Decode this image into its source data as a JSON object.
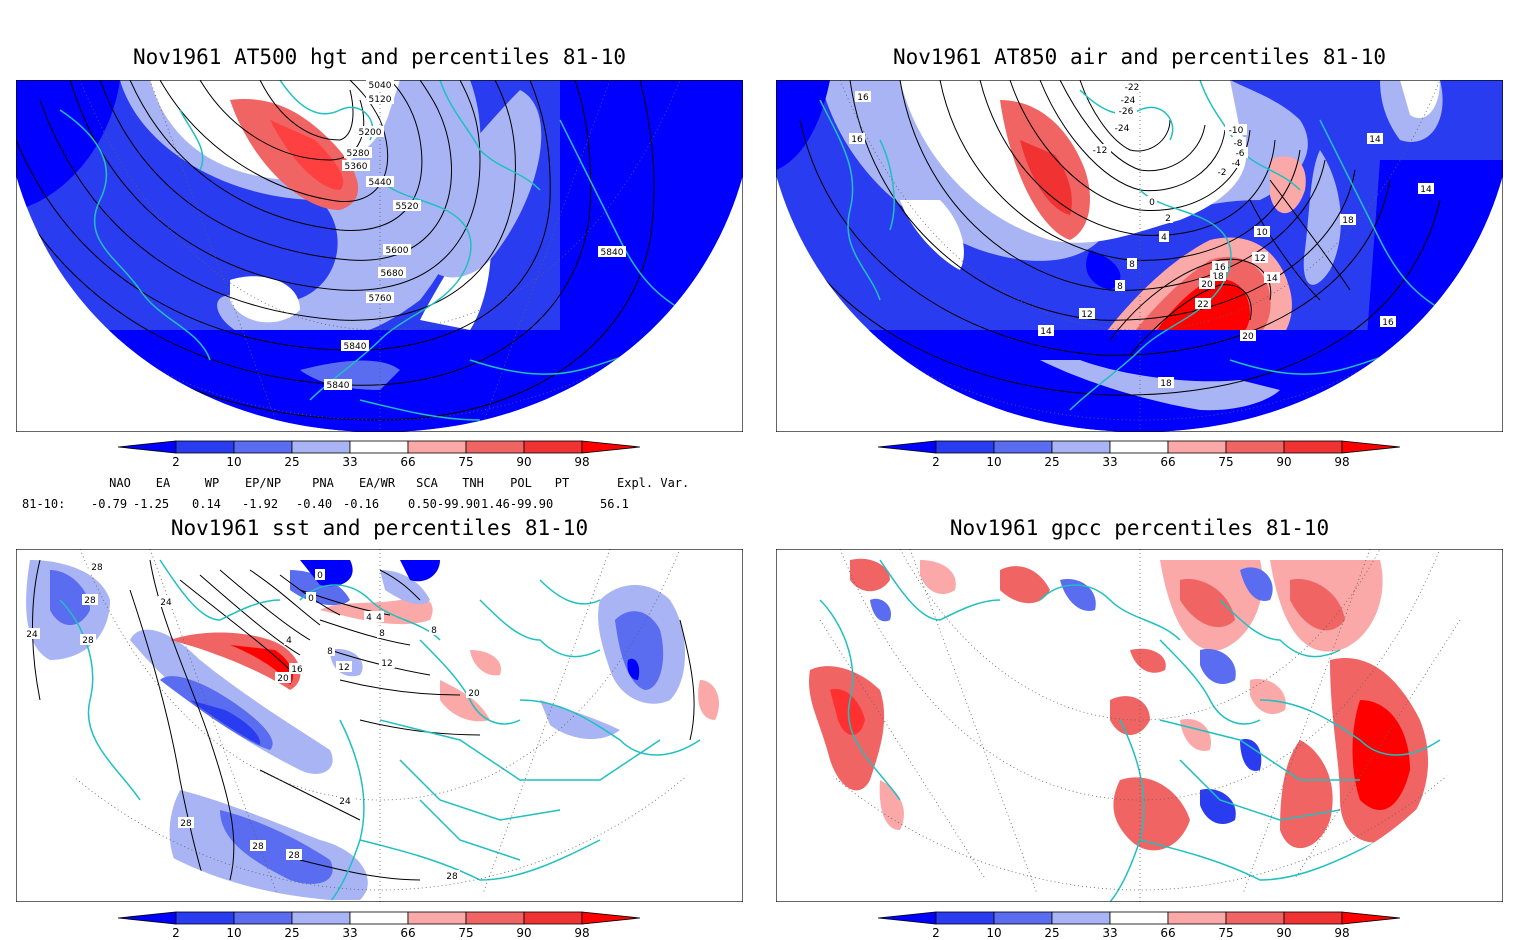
{
  "panels": [
    {
      "id": "hgt",
      "title": "Nov1961 AT500 hgt and percentiles 81-10",
      "contour_labels": [
        "5040",
        "5120",
        "5200",
        "5280",
        "5360",
        "5440",
        "5520",
        "5600",
        "5680",
        "5760",
        "5840",
        "5840",
        "5840"
      ]
    },
    {
      "id": "air",
      "title": "Nov1961 AT850 air and percentiles 81-10",
      "contour_labels": [
        "-22",
        "-24",
        "-26",
        "-24",
        "-12",
        "-10",
        "-8",
        "-6",
        "-4",
        "-2",
        "0",
        "2",
        "4",
        "8",
        "8",
        "10",
        "12",
        "12",
        "14",
        "14",
        "14",
        "16",
        "16",
        "16",
        "18",
        "18",
        "18",
        "20",
        "20",
        "22",
        "16",
        "14"
      ]
    },
    {
      "id": "sst",
      "title": "Nov1961 sst and percentiles 81-10",
      "contour_labels": [
        "28",
        "28",
        "28",
        "24",
        "24",
        "0",
        "0",
        "4",
        "4",
        "4",
        "8",
        "8",
        "8",
        "12",
        "12",
        "16",
        "20",
        "20",
        "28",
        "28",
        "28",
        "28",
        "24"
      ]
    },
    {
      "id": "gpcc",
      "title": "Nov1961 gpcc percentiles 81-10",
      "contour_labels": []
    }
  ],
  "colorbar": {
    "labels": [
      "2",
      "10",
      "25",
      "33",
      "66",
      "75",
      "90",
      "98"
    ],
    "colors": [
      "#0000ff",
      "#2a3cf0",
      "#5a6cf0",
      "#a8b4f4",
      "#ffffff",
      "#faa8a8",
      "#f06464",
      "#f03232",
      "#ff0000"
    ]
  },
  "indices": {
    "headers": [
      "NAO",
      "EA",
      "WP",
      "EP/NP",
      "PNA",
      "EA/WR",
      "SCA",
      "TNH",
      "POL",
      "PT",
      "Expl. Var."
    ],
    "row_label": "81-10:",
    "values": [
      "-0.79",
      "-1.25",
      "0.14",
      "-1.92",
      "-0.40",
      "-0.16",
      "0.50-99.90",
      "",
      "1.46-99.90",
      "",
      "56.1"
    ]
  },
  "colors": {
    "coast": "#20c0c0",
    "blue_dark": "#0000ff",
    "blue_mid": "#5a6cf0",
    "red_dark": "#ff0000",
    "red_light": "#faa8a8"
  }
}
